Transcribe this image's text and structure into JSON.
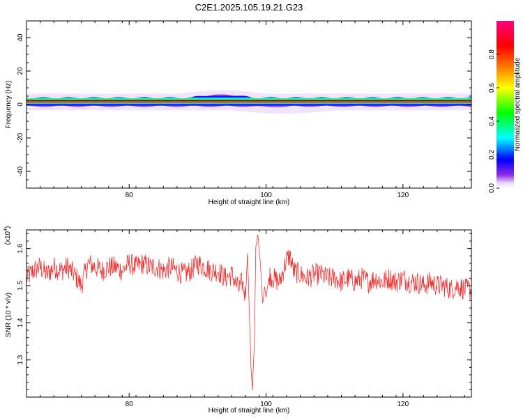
{
  "figure": {
    "title": "C2E1.2025.105.19.21.G23"
  },
  "chart_data": [
    {
      "type": "heatmap",
      "xlabel": "Height of straight line (km)",
      "ylabel": "Frequency (Hz)",
      "xlim": [
        65,
        130
      ],
      "ylim": [
        -50,
        50
      ],
      "x_ticks": [
        80,
        100,
        120
      ],
      "y_ticks": [
        -40,
        -20,
        0,
        20,
        40
      ],
      "grid": false,
      "band": {
        "center_hz": 1.5,
        "inner_halfwidth_hz": 0.8,
        "outer_halfwidth_hz": 2.6,
        "bulge_x": [
          89,
          98
        ],
        "bulge_top_hz": 6,
        "dip_x": [
          98,
          104
        ],
        "dip_bottom_hz": -1.5
      },
      "colorbar": {
        "label": "Normalized spectral amplitude",
        "range": [
          0.0,
          1.0
        ],
        "ticks": [
          "0.0",
          "0.2",
          "0.4",
          "0.6",
          "0.8"
        ],
        "colormap": "rainbow (white/violet low → blue → cyan → green → yellow → orange → red → magenta high)"
      }
    },
    {
      "type": "line",
      "xlabel": "Height of straight line (km)",
      "ylabel": "SNR (10 * v/v)",
      "y_multiplier": "(x10",
      "y_multiplier_exp": "4",
      "y_multiplier_close": ")",
      "xlim": [
        65,
        130
      ],
      "ylim": [
        1.2,
        1.65
      ],
      "x_ticks": [
        80,
        100,
        120
      ],
      "y_ticks": [
        "1.3",
        "1.4",
        "1.5",
        "1.6"
      ],
      "grid": false,
      "series": [
        {
          "color": "#ee3333",
          "points": [
            [
              65,
              1.52
            ],
            [
              66,
              1.54
            ],
            [
              67,
              1.55
            ],
            [
              68,
              1.53
            ],
            [
              69,
              1.55
            ],
            [
              70,
              1.54
            ],
            [
              71,
              1.55
            ],
            [
              72,
              1.53
            ],
            [
              73,
              1.5
            ],
            [
              74,
              1.56
            ],
            [
              75,
              1.55
            ],
            [
              76,
              1.54
            ],
            [
              77,
              1.55
            ],
            [
              78,
              1.55
            ],
            [
              79,
              1.54
            ],
            [
              80,
              1.56
            ],
            [
              81,
              1.55
            ],
            [
              82,
              1.56
            ],
            [
              83,
              1.55
            ],
            [
              84,
              1.55
            ],
            [
              85,
              1.54
            ],
            [
              86,
              1.55
            ],
            [
              87,
              1.54
            ],
            [
              88,
              1.53
            ],
            [
              89,
              1.54
            ],
            [
              90,
              1.56
            ],
            [
              91,
              1.55
            ],
            [
              92,
              1.54
            ],
            [
              93,
              1.54
            ],
            [
              94,
              1.52
            ],
            [
              95,
              1.53
            ],
            [
              96,
              1.49
            ],
            [
              96.5,
              1.51
            ],
            [
              97,
              1.47
            ],
            [
              97.3,
              1.59
            ],
            [
              97.8,
              1.28
            ],
            [
              98,
              1.22
            ],
            [
              98.3,
              1.35
            ],
            [
              98.5,
              1.6
            ],
            [
              98.8,
              1.64
            ],
            [
              99.2,
              1.55
            ],
            [
              99.5,
              1.45
            ],
            [
              99.8,
              1.5
            ],
            [
              100,
              1.47
            ],
            [
              100.5,
              1.53
            ],
            [
              101,
              1.52
            ],
            [
              102,
              1.51
            ],
            [
              103,
              1.57
            ],
            [
              103.5,
              1.58
            ],
            [
              104,
              1.54
            ],
            [
              105,
              1.53
            ],
            [
              106,
              1.52
            ],
            [
              107,
              1.53
            ],
            [
              108,
              1.53
            ],
            [
              109,
              1.52
            ],
            [
              110,
              1.52
            ],
            [
              111,
              1.51
            ],
            [
              112,
              1.52
            ],
            [
              113,
              1.51
            ],
            [
              114,
              1.52
            ],
            [
              115,
              1.51
            ],
            [
              116,
              1.52
            ],
            [
              117,
              1.51
            ],
            [
              118,
              1.52
            ],
            [
              119,
              1.51
            ],
            [
              120,
              1.52
            ],
            [
              121,
              1.51
            ],
            [
              122,
              1.51
            ],
            [
              123,
              1.5
            ],
            [
              124,
              1.51
            ],
            [
              125,
              1.5
            ],
            [
              126,
              1.5
            ],
            [
              127,
              1.49
            ],
            [
              128,
              1.5
            ],
            [
              129,
              1.49
            ],
            [
              130,
              1.49
            ]
          ],
          "noise_amplitude": 0.03
        }
      ]
    }
  ]
}
